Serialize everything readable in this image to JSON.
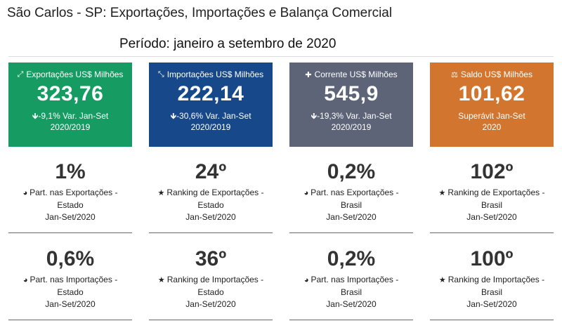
{
  "title": "São Carlos - SP: Exportações, Importações e Balança Comercial",
  "period": "Período: janeiro a setembro de 2020",
  "cards": [
    {
      "icon": "arrows-expand-icon",
      "glyph": "⤢",
      "label": "Exportações US$ Milhões",
      "value": "323,76",
      "var_line1": "-9,1% Var. Jan-Set",
      "var_line2": "2020/2019",
      "arrow": "🡻",
      "color": "#169b62"
    },
    {
      "icon": "arrows-compress-icon",
      "glyph": "⤡",
      "label": "Importações US$ Milhões",
      "value": "222,14",
      "var_line1": "-30,6% Var. Jan-Set",
      "var_line2": "2020/2019",
      "arrow": "🡻",
      "color": "#17498a"
    },
    {
      "icon": "plus-icon",
      "glyph": "✚",
      "label": "Corrente US$ Milhões",
      "value": "545,9",
      "var_line1": "-19,3% Var. Jan-Set",
      "var_line2": "2020/2019",
      "arrow": "🡻",
      "color": "#5d6478"
    },
    {
      "icon": "balance-scale-icon",
      "glyph": "⚖",
      "label": "Saldo US$ Milhões",
      "value": "101,62",
      "var_line1": "Superávit Jan-Set",
      "var_line2": "2020",
      "arrow": "",
      "color": "#d2762f"
    }
  ],
  "stats_row1": [
    {
      "value": "1%",
      "icon": "pie-chart-icon",
      "glyph": "◕",
      "l1": "Part. nas Exportações -",
      "l2": "Estado",
      "l3": "Jan-Set/2020"
    },
    {
      "value": "24º",
      "icon": "star-icon",
      "glyph": "★",
      "l1": "Ranking de Exportações -",
      "l2": "Estado",
      "l3": "Jan-Set/2020"
    },
    {
      "value": "0,2%",
      "icon": "pie-chart-icon",
      "glyph": "◕",
      "l1": "Part. nas Exportações -",
      "l2": "Brasil",
      "l3": "Jan-Set/2020"
    },
    {
      "value": "102º",
      "icon": "star-icon",
      "glyph": "★",
      "l1": "Ranking de Exportações -",
      "l2": "Brasil",
      "l3": "Jan-Set/2020"
    }
  ],
  "stats_row2": [
    {
      "value": "0,6%",
      "icon": "pie-chart-icon",
      "glyph": "◕",
      "l1": "Part. nas Importações -",
      "l2": "Estado",
      "l3": "Jan-Set/2020"
    },
    {
      "value": "36º",
      "icon": "star-icon",
      "glyph": "★",
      "l1": "Ranking de Importações -",
      "l2": "Estado",
      "l3": "Jan-Set/2020"
    },
    {
      "value": "0,2%",
      "icon": "pie-chart-icon",
      "glyph": "◕",
      "l1": "Part. nas Importações -",
      "l2": "Brasil",
      "l3": "Jan-Set/2020"
    },
    {
      "value": "100º",
      "icon": "star-icon",
      "glyph": "★",
      "l1": "Ranking de Importações -",
      "l2": "Brasil",
      "l3": "Jan-Set/2020"
    }
  ]
}
